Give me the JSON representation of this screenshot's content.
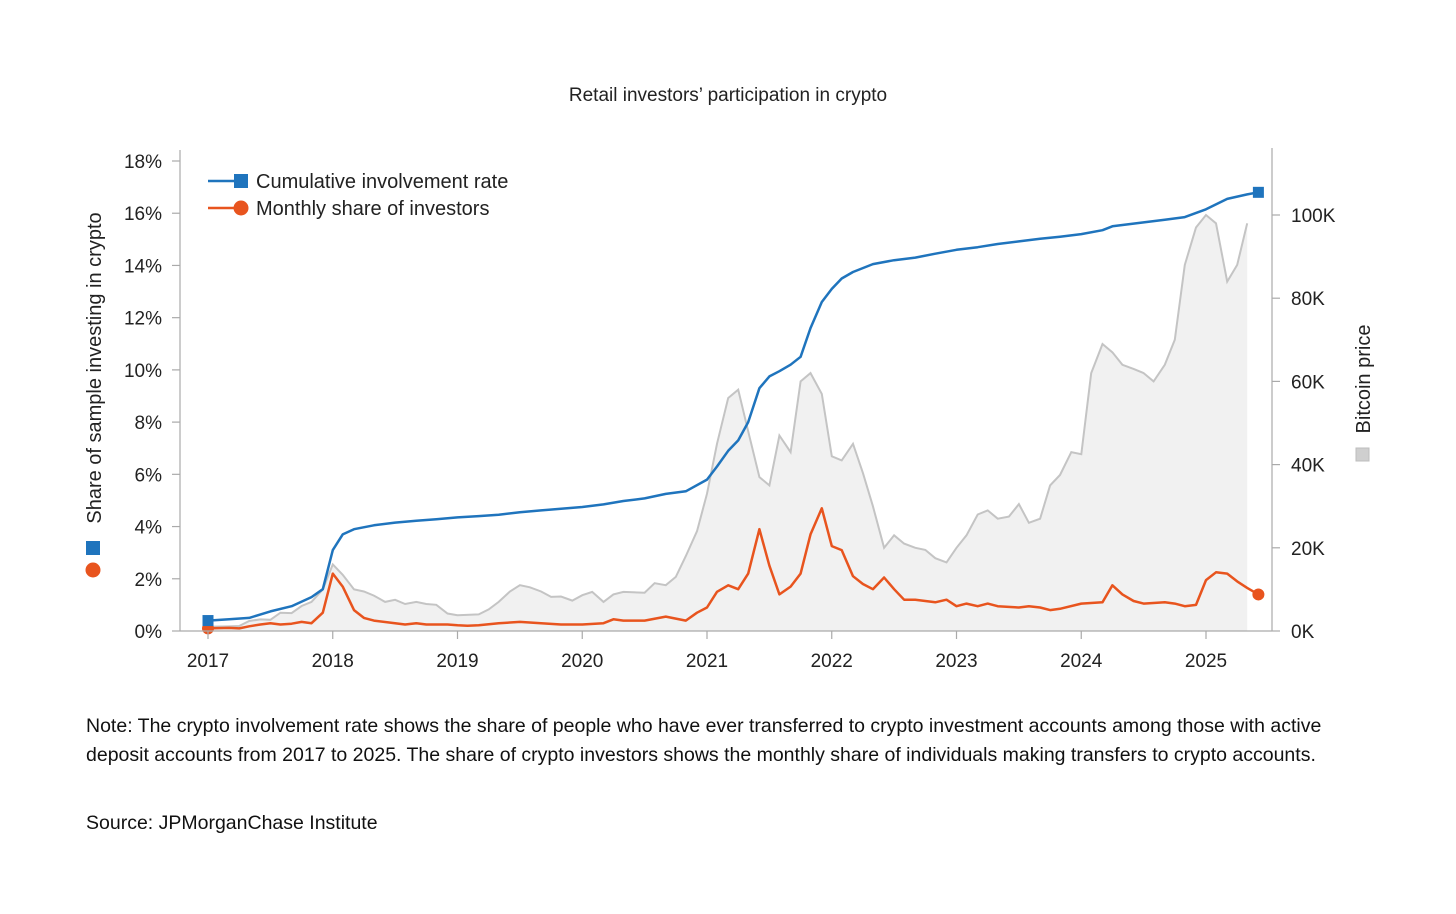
{
  "chart_data": {
    "type": "line",
    "title": "Retail investors’ participation in crypto",
    "ylabel": "Share of sample investing in crypto",
    "y2label": "Bitcoin price",
    "ylim": [
      0,
      18
    ],
    "y2lim": [
      0,
      110000
    ],
    "yticks": [
      "0%",
      "2%",
      "4%",
      "6%",
      "8%",
      "10%",
      "12%",
      "14%",
      "16%",
      "18%"
    ],
    "y2ticks": [
      "0K",
      "20K",
      "40K",
      "60K",
      "80K",
      "100K"
    ],
    "xticks": [
      "2017",
      "2018",
      "2019",
      "2020",
      "2021",
      "2022",
      "2023",
      "2024",
      "2025"
    ],
    "grid": false,
    "legend_position": "top-left",
    "series": [
      {
        "name": "Cumulative involvement rate",
        "axis": "left",
        "color": "#1f74bd",
        "marker": "square",
        "points": [
          [
            2017.0,
            0.4
          ],
          [
            2017.17,
            0.45
          ],
          [
            2017.33,
            0.5
          ],
          [
            2017.5,
            0.75
          ],
          [
            2017.67,
            0.95
          ],
          [
            2017.83,
            1.3
          ],
          [
            2017.92,
            1.6
          ],
          [
            2018.0,
            3.1
          ],
          [
            2018.08,
            3.7
          ],
          [
            2018.17,
            3.9
          ],
          [
            2018.33,
            4.05
          ],
          [
            2018.5,
            4.15
          ],
          [
            2018.67,
            4.22
          ],
          [
            2018.83,
            4.28
          ],
          [
            2019.0,
            4.35
          ],
          [
            2019.17,
            4.4
          ],
          [
            2019.33,
            4.45
          ],
          [
            2019.5,
            4.55
          ],
          [
            2019.67,
            4.62
          ],
          [
            2019.83,
            4.68
          ],
          [
            2020.0,
            4.75
          ],
          [
            2020.17,
            4.85
          ],
          [
            2020.33,
            4.98
          ],
          [
            2020.5,
            5.08
          ],
          [
            2020.67,
            5.25
          ],
          [
            2020.83,
            5.35
          ],
          [
            2021.0,
            5.8
          ],
          [
            2021.08,
            6.3
          ],
          [
            2021.17,
            6.9
          ],
          [
            2021.25,
            7.3
          ],
          [
            2021.33,
            8.0
          ],
          [
            2021.42,
            9.3
          ],
          [
            2021.5,
            9.75
          ],
          [
            2021.58,
            9.95
          ],
          [
            2021.67,
            10.2
          ],
          [
            2021.75,
            10.5
          ],
          [
            2021.83,
            11.6
          ],
          [
            2021.92,
            12.6
          ],
          [
            2022.0,
            13.1
          ],
          [
            2022.08,
            13.5
          ],
          [
            2022.17,
            13.75
          ],
          [
            2022.33,
            14.05
          ],
          [
            2022.5,
            14.2
          ],
          [
            2022.67,
            14.3
          ],
          [
            2022.83,
            14.45
          ],
          [
            2023.0,
            14.6
          ],
          [
            2023.17,
            14.7
          ],
          [
            2023.33,
            14.82
          ],
          [
            2023.5,
            14.92
          ],
          [
            2023.67,
            15.02
          ],
          [
            2023.83,
            15.1
          ],
          [
            2024.0,
            15.2
          ],
          [
            2024.17,
            15.35
          ],
          [
            2024.25,
            15.5
          ],
          [
            2024.5,
            15.65
          ],
          [
            2024.67,
            15.75
          ],
          [
            2024.83,
            15.85
          ],
          [
            2025.0,
            16.15
          ],
          [
            2025.17,
            16.55
          ],
          [
            2025.33,
            16.72
          ],
          [
            2025.42,
            16.8
          ]
        ]
      },
      {
        "name": "Monthly share of investors",
        "axis": "left",
        "color": "#e8541e",
        "marker": "circle",
        "points": [
          [
            2017.0,
            0.1
          ],
          [
            2017.17,
            0.12
          ],
          [
            2017.25,
            0.1
          ],
          [
            2017.33,
            0.18
          ],
          [
            2017.42,
            0.25
          ],
          [
            2017.5,
            0.3
          ],
          [
            2017.58,
            0.25
          ],
          [
            2017.67,
            0.28
          ],
          [
            2017.75,
            0.35
          ],
          [
            2017.83,
            0.3
          ],
          [
            2017.92,
            0.7
          ],
          [
            2018.0,
            2.2
          ],
          [
            2018.08,
            1.7
          ],
          [
            2018.17,
            0.8
          ],
          [
            2018.25,
            0.5
          ],
          [
            2018.33,
            0.4
          ],
          [
            2018.5,
            0.3
          ],
          [
            2018.58,
            0.25
          ],
          [
            2018.67,
            0.3
          ],
          [
            2018.75,
            0.25
          ],
          [
            2018.92,
            0.25
          ],
          [
            2019.0,
            0.22
          ],
          [
            2019.08,
            0.2
          ],
          [
            2019.17,
            0.22
          ],
          [
            2019.33,
            0.3
          ],
          [
            2019.5,
            0.35
          ],
          [
            2019.67,
            0.3
          ],
          [
            2019.83,
            0.25
          ],
          [
            2020.0,
            0.25
          ],
          [
            2020.17,
            0.3
          ],
          [
            2020.25,
            0.45
          ],
          [
            2020.33,
            0.4
          ],
          [
            2020.5,
            0.4
          ],
          [
            2020.67,
            0.55
          ],
          [
            2020.83,
            0.4
          ],
          [
            2020.92,
            0.7
          ],
          [
            2021.0,
            0.9
          ],
          [
            2021.08,
            1.5
          ],
          [
            2021.17,
            1.75
          ],
          [
            2021.25,
            1.6
          ],
          [
            2021.33,
            2.2
          ],
          [
            2021.42,
            3.9
          ],
          [
            2021.5,
            2.5
          ],
          [
            2021.58,
            1.4
          ],
          [
            2021.67,
            1.7
          ],
          [
            2021.75,
            2.2
          ],
          [
            2021.83,
            3.7
          ],
          [
            2021.92,
            4.7
          ],
          [
            2022.0,
            3.25
          ],
          [
            2022.08,
            3.1
          ],
          [
            2022.17,
            2.1
          ],
          [
            2022.25,
            1.8
          ],
          [
            2022.33,
            1.6
          ],
          [
            2022.42,
            2.05
          ],
          [
            2022.5,
            1.6
          ],
          [
            2022.58,
            1.2
          ],
          [
            2022.67,
            1.2
          ],
          [
            2022.83,
            1.1
          ],
          [
            2022.92,
            1.2
          ],
          [
            2023.0,
            0.95
          ],
          [
            2023.08,
            1.05
          ],
          [
            2023.17,
            0.95
          ],
          [
            2023.25,
            1.05
          ],
          [
            2023.33,
            0.95
          ],
          [
            2023.5,
            0.9
          ],
          [
            2023.58,
            0.95
          ],
          [
            2023.67,
            0.9
          ],
          [
            2023.75,
            0.8
          ],
          [
            2023.83,
            0.85
          ],
          [
            2024.0,
            1.05
          ],
          [
            2024.17,
            1.1
          ],
          [
            2024.25,
            1.75
          ],
          [
            2024.33,
            1.4
          ],
          [
            2024.42,
            1.15
          ],
          [
            2024.5,
            1.05
          ],
          [
            2024.67,
            1.1
          ],
          [
            2024.75,
            1.05
          ],
          [
            2024.83,
            0.95
          ],
          [
            2024.92,
            1.0
          ],
          [
            2025.0,
            1.95
          ],
          [
            2025.08,
            2.25
          ],
          [
            2025.17,
            2.2
          ],
          [
            2025.25,
            1.9
          ],
          [
            2025.33,
            1.65
          ],
          [
            2025.42,
            1.4
          ]
        ]
      },
      {
        "name": "Bitcoin price",
        "axis": "right",
        "color": "#c4c4c4",
        "fill": "#f1f1f1",
        "marker": "square",
        "points": [
          [
            2017.0,
            1000
          ],
          [
            2017.17,
            1100
          ],
          [
            2017.25,
            1200
          ],
          [
            2017.33,
            2400
          ],
          [
            2017.42,
            2800
          ],
          [
            2017.5,
            2700
          ],
          [
            2017.58,
            4400
          ],
          [
            2017.67,
            4300
          ],
          [
            2017.75,
            6000
          ],
          [
            2017.83,
            7000
          ],
          [
            2017.92,
            10000
          ],
          [
            2018.0,
            16000
          ],
          [
            2018.08,
            13500
          ],
          [
            2018.17,
            10000
          ],
          [
            2018.25,
            9500
          ],
          [
            2018.33,
            8500
          ],
          [
            2018.42,
            7000
          ],
          [
            2018.5,
            7500
          ],
          [
            2018.58,
            6500
          ],
          [
            2018.67,
            7000
          ],
          [
            2018.75,
            6500
          ],
          [
            2018.83,
            6300
          ],
          [
            2018.92,
            4200
          ],
          [
            2019.0,
            3800
          ],
          [
            2019.17,
            4000
          ],
          [
            2019.25,
            5200
          ],
          [
            2019.33,
            7000
          ],
          [
            2019.42,
            9500
          ],
          [
            2019.5,
            11000
          ],
          [
            2019.58,
            10500
          ],
          [
            2019.67,
            9500
          ],
          [
            2019.75,
            8200
          ],
          [
            2019.83,
            8300
          ],
          [
            2019.92,
            7300
          ],
          [
            2020.0,
            8600
          ],
          [
            2020.08,
            9400
          ],
          [
            2020.17,
            7000
          ],
          [
            2020.25,
            8800
          ],
          [
            2020.33,
            9400
          ],
          [
            2020.5,
            9200
          ],
          [
            2020.58,
            11500
          ],
          [
            2020.67,
            11000
          ],
          [
            2020.75,
            13000
          ],
          [
            2020.83,
            18000
          ],
          [
            2020.92,
            24000
          ],
          [
            2021.0,
            33000
          ],
          [
            2021.08,
            45000
          ],
          [
            2021.17,
            56000
          ],
          [
            2021.25,
            58000
          ],
          [
            2021.33,
            48000
          ],
          [
            2021.42,
            37000
          ],
          [
            2021.5,
            35000
          ],
          [
            2021.58,
            47000
          ],
          [
            2021.67,
            43000
          ],
          [
            2021.75,
            60000
          ],
          [
            2021.83,
            62000
          ],
          [
            2021.92,
            57000
          ],
          [
            2022.0,
            42000
          ],
          [
            2022.08,
            41000
          ],
          [
            2022.17,
            45000
          ],
          [
            2022.25,
            38000
          ],
          [
            2022.33,
            30000
          ],
          [
            2022.42,
            20000
          ],
          [
            2022.5,
            23000
          ],
          [
            2022.58,
            21000
          ],
          [
            2022.67,
            20000
          ],
          [
            2022.75,
            19500
          ],
          [
            2022.83,
            17500
          ],
          [
            2022.92,
            16500
          ],
          [
            2023.0,
            20000
          ],
          [
            2023.08,
            23000
          ],
          [
            2023.17,
            28000
          ],
          [
            2023.25,
            29000
          ],
          [
            2023.33,
            27000
          ],
          [
            2023.42,
            27500
          ],
          [
            2023.5,
            30500
          ],
          [
            2023.58,
            26000
          ],
          [
            2023.67,
            27000
          ],
          [
            2023.75,
            35000
          ],
          [
            2023.83,
            37500
          ],
          [
            2023.92,
            43000
          ],
          [
            2024.0,
            42500
          ],
          [
            2024.08,
            62000
          ],
          [
            2024.17,
            69000
          ],
          [
            2024.25,
            67000
          ],
          [
            2024.33,
            64000
          ],
          [
            2024.42,
            63000
          ],
          [
            2024.5,
            62000
          ],
          [
            2024.58,
            60000
          ],
          [
            2024.67,
            64000
          ],
          [
            2024.75,
            70000
          ],
          [
            2024.83,
            88000
          ],
          [
            2024.92,
            97000
          ],
          [
            2025.0,
            100000
          ],
          [
            2025.08,
            98000
          ],
          [
            2025.17,
            84000
          ],
          [
            2025.25,
            88000
          ],
          [
            2025.33,
            98000
          ]
        ]
      }
    ]
  },
  "note": "Note: The crypto involvement rate shows the share of people who have ever transferred to crypto investment accounts among those with active deposit accounts from 2017 to 2025. The share of crypto investors shows the monthly share of individuals making transfers to crypto accounts.",
  "source": "Source: JPMorganChase Institute"
}
